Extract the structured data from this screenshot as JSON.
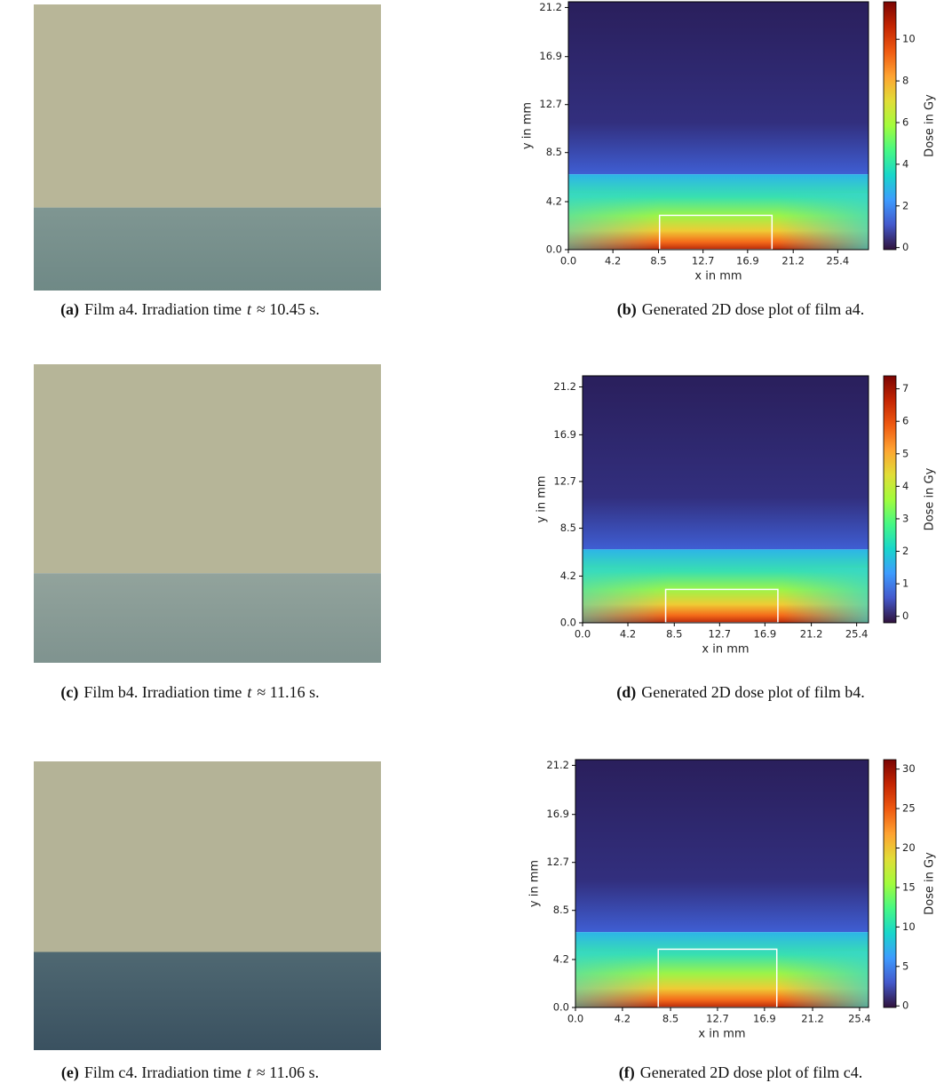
{
  "photos": [
    {
      "caption": {
        "label": "(a)",
        "text": "Film a4. Irradiation time",
        "var": "t",
        "rest": "≈ 10.45 s."
      }
    },
    {
      "caption": {
        "label": "(c)",
        "text": "Film b4. Irradiation time",
        "var": "t",
        "rest": "≈ 11.16 s."
      }
    },
    {
      "caption": {
        "label": "(e)",
        "text": "Film c4. Irradiation time",
        "var": "t",
        "rest": "≈ 11.06 s."
      }
    }
  ],
  "chart_data": [
    {
      "type": "heatmap",
      "xlabel": "x in mm",
      "ylabel": "y in mm",
      "colorbar_label": "Dose in Gy",
      "xlim": [
        0,
        28.3
      ],
      "ylim": [
        0,
        21.7
      ],
      "xticks": [
        {
          "value": 0,
          "label": "0.0"
        },
        4.2,
        8.5,
        12.7,
        16.9,
        21.2,
        25.4
      ],
      "yticks": [
        {
          "value": 0,
          "label": "0.0"
        },
        4.2,
        8.5,
        12.7,
        16.9,
        21.2
      ],
      "clim": [
        -0.1,
        11.8
      ],
      "cticks": [
        0,
        2,
        4,
        6,
        8,
        10
      ],
      "roi": {
        "x": [
          8.6,
          19.2
        ],
        "y": [
          0,
          3.0
        ]
      },
      "caption": {
        "label": "(b)",
        "text": "Generated 2D dose plot of film a4."
      }
    },
    {
      "type": "heatmap",
      "xlabel": "x in mm",
      "ylabel": "y in mm",
      "colorbar_label": "Dose in Gy",
      "xlim": [
        0,
        26.5
      ],
      "ylim": [
        0,
        22.2
      ],
      "xticks": [
        {
          "value": 0,
          "label": "0.0"
        },
        4.2,
        8.5,
        12.7,
        16.9,
        21.2,
        25.4
      ],
      "yticks": [
        {
          "value": 0,
          "label": "0.0"
        },
        4.2,
        8.5,
        12.7,
        16.9,
        21.2
      ],
      "clim": [
        -0.2,
        7.4
      ],
      "cticks": [
        0,
        1,
        2,
        3,
        4,
        5,
        6,
        7
      ],
      "roi": {
        "x": [
          7.7,
          18.1
        ],
        "y": [
          0,
          3.0
        ]
      },
      "caption": {
        "label": "(d)",
        "text": "Generated 2D dose plot of film b4."
      }
    },
    {
      "type": "heatmap",
      "xlabel": "x in mm",
      "ylabel": "y in mm",
      "colorbar_label": "Dose in Gy",
      "xlim": [
        0,
        26.2
      ],
      "ylim": [
        0,
        21.7
      ],
      "xticks": [
        {
          "value": 0,
          "label": "0.0"
        },
        4.2,
        8.5,
        12.7,
        16.9,
        21.2,
        25.4
      ],
      "yticks": [
        {
          "value": 0,
          "label": "0.0"
        },
        4.2,
        8.5,
        12.7,
        16.9,
        21.2
      ],
      "clim": [
        -0.2,
        31.2
      ],
      "cticks": [
        0,
        5,
        10,
        15,
        20,
        25,
        30
      ],
      "roi": {
        "x": [
          7.4,
          18.0
        ],
        "y": [
          0,
          5.1
        ]
      },
      "caption": {
        "label": "(f)",
        "text": "Generated 2D dose plot of film c4."
      }
    }
  ]
}
